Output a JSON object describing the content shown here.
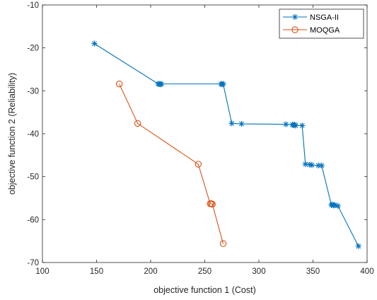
{
  "chart_data": {
    "type": "line",
    "title": "",
    "xlabel": "objective function 1 (Cost)",
    "ylabel": "objective function 2 (Reliability)",
    "xlim": [
      100,
      400
    ],
    "ylim": [
      -70,
      -10
    ],
    "xticks": [
      100,
      150,
      200,
      250,
      300,
      350,
      400
    ],
    "yticks": [
      -70,
      -60,
      -50,
      -40,
      -30,
      -20,
      -10
    ],
    "grid": false,
    "legend_position": "top-right",
    "series": [
      {
        "name": "NSGA-II",
        "color": "#0072BD",
        "marker": "asterisk",
        "points": [
          [
            148,
            -19.0
          ],
          [
            207,
            -28.4
          ],
          [
            208,
            -28.4
          ],
          [
            209,
            -28.5
          ],
          [
            210,
            -28.4
          ],
          [
            265,
            -28.4
          ],
          [
            266,
            -28.5
          ],
          [
            267,
            -28.4
          ],
          [
            275,
            -37.6
          ],
          [
            284,
            -37.7
          ],
          [
            325,
            -37.8
          ],
          [
            331,
            -37.9
          ],
          [
            332,
            -38.0
          ],
          [
            333,
            -37.9
          ],
          [
            334,
            -38.1
          ],
          [
            340,
            -38.1
          ],
          [
            343,
            -47.1
          ],
          [
            347,
            -47.2
          ],
          [
            349,
            -47.3
          ],
          [
            355,
            -47.4
          ],
          [
            358,
            -47.4
          ],
          [
            367,
            -56.6
          ],
          [
            368,
            -56.5
          ],
          [
            369,
            -56.7
          ],
          [
            370,
            -56.6
          ],
          [
            373,
            -56.8
          ],
          [
            392,
            -66.2
          ]
        ]
      },
      {
        "name": "MOQGA",
        "color": "#D95319",
        "marker": "circle",
        "points": [
          [
            171,
            -28.4
          ],
          [
            188,
            -37.6
          ],
          [
            244,
            -47.1
          ],
          [
            255,
            -56.3
          ],
          [
            256,
            -56.3
          ],
          [
            257,
            -56.4
          ],
          [
            267,
            -65.6
          ]
        ]
      }
    ]
  }
}
